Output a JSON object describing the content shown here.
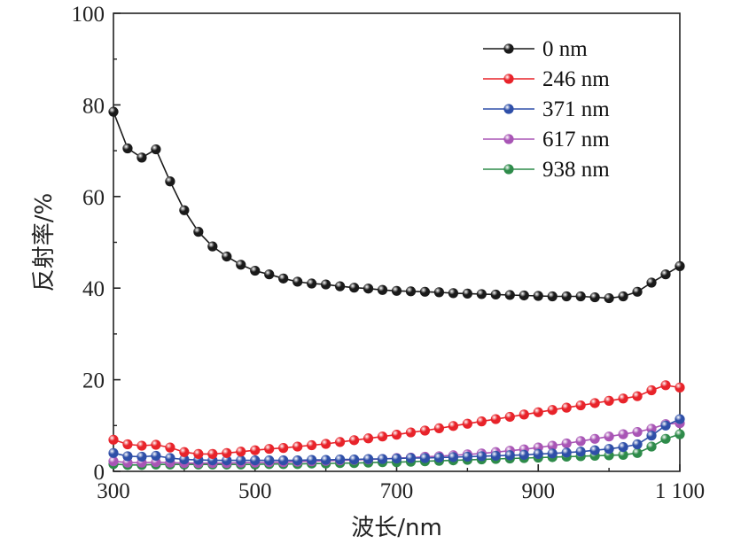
{
  "chart_data": {
    "type": "line",
    "xlabel": "波长/nm",
    "ylabel": "反射率/%",
    "xlim": [
      300,
      1100
    ],
    "ylim": [
      0,
      100
    ],
    "x_ticks": [
      300,
      500,
      700,
      900,
      1100
    ],
    "x_tick_labels": [
      "300",
      "500",
      "700",
      "900",
      "1 100"
    ],
    "y_ticks": [
      0,
      20,
      40,
      60,
      80,
      100
    ],
    "y_tick_labels": [
      "0",
      "20",
      "40",
      "60",
      "80",
      "100"
    ],
    "grid": false,
    "legend_position": "top-right",
    "x": [
      300,
      320,
      340,
      360,
      380,
      400,
      420,
      440,
      460,
      480,
      500,
      520,
      540,
      560,
      580,
      600,
      620,
      640,
      660,
      680,
      700,
      720,
      740,
      760,
      780,
      800,
      820,
      840,
      860,
      880,
      900,
      920,
      940,
      960,
      980,
      1000,
      1020,
      1040,
      1060,
      1080,
      1100
    ],
    "series": [
      {
        "name": "0 nm",
        "color": "#1a1a1a",
        "values": [
          78.5,
          70.5,
          68.5,
          70.3,
          63.3,
          57.0,
          52.3,
          49.1,
          46.9,
          45.1,
          43.8,
          43.0,
          42.1,
          41.4,
          41.0,
          40.8,
          40.4,
          40.1,
          39.9,
          39.6,
          39.4,
          39.3,
          39.2,
          39.1,
          38.9,
          38.8,
          38.7,
          38.6,
          38.5,
          38.4,
          38.3,
          38.2,
          38.2,
          38.2,
          38.0,
          37.8,
          38.2,
          39.2,
          41.2,
          43.0,
          44.8
        ]
      },
      {
        "name": "246 nm",
        "color": "#e8232a",
        "values": [
          6.9,
          5.9,
          5.6,
          5.8,
          5.2,
          4.2,
          3.8,
          3.8,
          4.0,
          4.3,
          4.6,
          4.9,
          5.1,
          5.4,
          5.7,
          6.0,
          6.4,
          6.8,
          7.2,
          7.6,
          8.0,
          8.5,
          8.9,
          9.4,
          9.9,
          10.4,
          10.9,
          11.4,
          11.9,
          12.4,
          12.9,
          13.4,
          13.9,
          14.4,
          14.9,
          15.4,
          15.9,
          16.4,
          17.7,
          18.8,
          18.3
        ]
      },
      {
        "name": "371 nm",
        "color": "#2e4fa8",
        "values": [
          4.0,
          3.3,
          3.2,
          3.4,
          2.9,
          2.6,
          2.5,
          2.4,
          2.4,
          2.4,
          2.4,
          2.4,
          2.4,
          2.4,
          2.5,
          2.5,
          2.6,
          2.6,
          2.7,
          2.7,
          2.8,
          2.9,
          2.9,
          3.0,
          3.1,
          3.2,
          3.3,
          3.4,
          3.5,
          3.6,
          3.8,
          3.9,
          4.1,
          4.3,
          4.6,
          4.9,
          5.3,
          5.9,
          7.8,
          10.0,
          11.4
        ]
      },
      {
        "name": "617 nm",
        "color": "#a855b5",
        "values": [
          2.2,
          1.9,
          1.9,
          2.0,
          1.9,
          1.8,
          1.8,
          1.8,
          1.8,
          1.9,
          1.9,
          2.0,
          2.0,
          2.1,
          2.2,
          2.3,
          2.4,
          2.5,
          2.6,
          2.7,
          2.9,
          3.0,
          3.2,
          3.3,
          3.5,
          3.7,
          3.9,
          4.2,
          4.5,
          4.8,
          5.2,
          5.6,
          6.1,
          6.6,
          7.1,
          7.6,
          8.1,
          8.6,
          9.3,
          10.3,
          10.5
        ]
      },
      {
        "name": "938 nm",
        "color": "#2e8b4a",
        "values": [
          1.6,
          1.4,
          1.4,
          1.5,
          1.5,
          1.5,
          1.5,
          1.5,
          1.5,
          1.5,
          1.5,
          1.6,
          1.6,
          1.6,
          1.7,
          1.7,
          1.8,
          1.8,
          1.9,
          2.0,
          2.0,
          2.1,
          2.2,
          2.3,
          2.4,
          2.5,
          2.6,
          2.7,
          2.8,
          2.9,
          3.0,
          3.1,
          3.2,
          3.3,
          3.4,
          3.5,
          3.6,
          4.0,
          5.4,
          7.1,
          8.1
        ]
      }
    ]
  }
}
